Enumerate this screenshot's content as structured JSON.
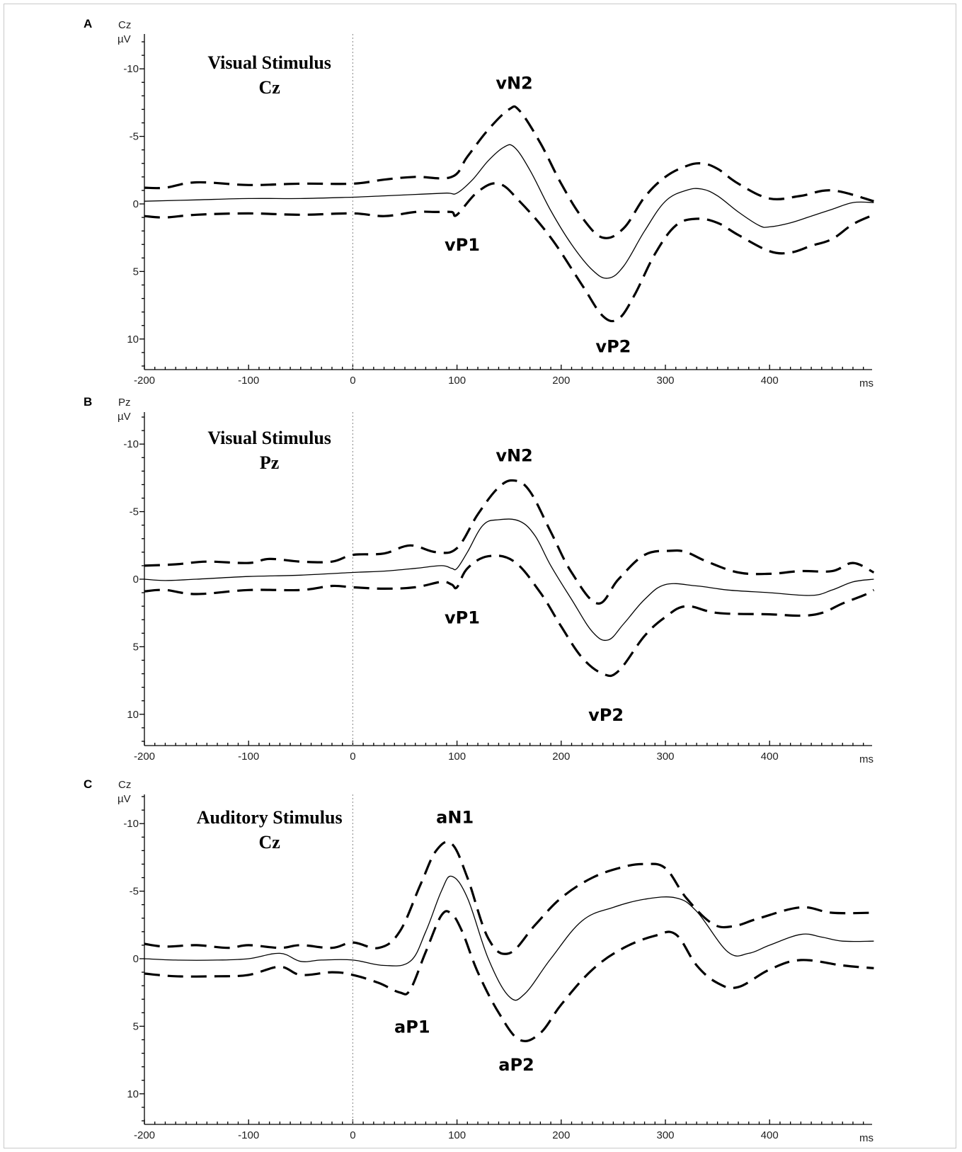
{
  "chart_data": [
    {
      "type": "line",
      "panel": "A",
      "channel": "Cz",
      "unit_y": "µV",
      "unit_x": "ms",
      "title": [
        "Visual Stimulus",
        "Cz"
      ],
      "xlim": [
        -200,
        500
      ],
      "ylim": [
        -12.5,
        12.5
      ],
      "y_inverted": true,
      "x_ticks": [
        -200,
        -100,
        0,
        100,
        200,
        300,
        400
      ],
      "y_ticks": [
        -10,
        -5,
        0,
        5,
        10
      ],
      "series": [
        {
          "style": "solid",
          "x": [
            -200,
            -150,
            -100,
            -50,
            0,
            30,
            60,
            90,
            100,
            115,
            130,
            145,
            155,
            170,
            190,
            210,
            230,
            245,
            260,
            280,
            300,
            320,
            335,
            350,
            370,
            390,
            400,
            420,
            440,
            460,
            480,
            500
          ],
          "y": [
            -0.2,
            -0.3,
            -0.4,
            -0.4,
            -0.5,
            -0.6,
            -0.7,
            -0.8,
            -0.8,
            -1.8,
            -3.2,
            -4.2,
            -4.2,
            -2.5,
            0.5,
            3.0,
            4.9,
            5.5,
            4.6,
            2.0,
            -0.2,
            -1.0,
            -1.1,
            -0.6,
            0.6,
            1.6,
            1.7,
            1.4,
            0.9,
            0.4,
            -0.1,
            -0.1
          ]
        },
        {
          "style": "dashed",
          "x": [
            -200,
            -180,
            -150,
            -100,
            -50,
            0,
            30,
            60,
            95,
            110,
            130,
            150,
            160,
            180,
            200,
            220,
            240,
            260,
            280,
            300,
            320,
            335,
            350,
            370,
            400,
            430,
            460,
            500
          ],
          "y": [
            -1.2,
            -1.2,
            -1.6,
            -1.4,
            -1.5,
            -1.5,
            -1.8,
            -2.0,
            -2.0,
            -3.5,
            -5.5,
            -7.0,
            -6.9,
            -4.5,
            -1.5,
            1.0,
            2.5,
            1.8,
            -0.5,
            -2.0,
            -2.8,
            -3.0,
            -2.6,
            -1.5,
            -0.4,
            -0.6,
            -1.0,
            -0.2
          ]
        },
        {
          "style": "dashed",
          "x": [
            -200,
            -180,
            -150,
            -100,
            -50,
            0,
            30,
            60,
            80,
            95,
            100,
            120,
            140,
            160,
            190,
            220,
            240,
            255,
            270,
            290,
            310,
            330,
            350,
            370,
            400,
            420,
            440,
            460,
            480,
            500
          ],
          "y": [
            0.9,
            1.0,
            0.8,
            0.7,
            0.8,
            0.7,
            0.9,
            0.6,
            0.6,
            0.6,
            0.8,
            -0.9,
            -1.5,
            -0.2,
            2.5,
            6.0,
            8.3,
            8.5,
            6.8,
            3.7,
            1.6,
            1.1,
            1.4,
            2.3,
            3.5,
            3.6,
            3.1,
            2.6,
            1.5,
            0.8
          ]
        }
      ],
      "annotations": [
        {
          "text": "vN2",
          "x": 155,
          "y": -9.0
        },
        {
          "text": "vP1",
          "x": 105,
          "y": 3.0
        },
        {
          "text": "vP2",
          "x": 250,
          "y": 10.5
        }
      ]
    },
    {
      "type": "line",
      "panel": "B",
      "channel": "Pz",
      "unit_y": "µV",
      "unit_x": "ms",
      "title": [
        "Visual Stimulus",
        "Pz"
      ],
      "xlim": [
        -200,
        500
      ],
      "ylim": [
        -12.5,
        12.5
      ],
      "y_inverted": true,
      "x_ticks": [
        -200,
        -100,
        0,
        100,
        200,
        300,
        400
      ],
      "y_ticks": [
        -10,
        -5,
        0,
        5,
        10
      ],
      "series": [
        {
          "style": "solid",
          "x": [
            -200,
            -180,
            -150,
            -100,
            -50,
            0,
            30,
            60,
            85,
            95,
            100,
            110,
            125,
            140,
            160,
            175,
            190,
            210,
            230,
            245,
            260,
            280,
            300,
            330,
            360,
            400,
            440,
            460,
            480,
            500
          ],
          "y": [
            0.0,
            0.1,
            0.0,
            -0.2,
            -0.3,
            -0.5,
            -0.6,
            -0.8,
            -1.0,
            -0.8,
            -0.8,
            -2.0,
            -4.0,
            -4.4,
            -4.3,
            -3.2,
            -1.0,
            1.5,
            3.9,
            4.5,
            3.3,
            1.5,
            0.4,
            0.5,
            0.8,
            1.0,
            1.2,
            0.8,
            0.2,
            0.0
          ]
        },
        {
          "style": "dashed",
          "x": [
            -200,
            -170,
            -140,
            -100,
            -80,
            -50,
            -20,
            0,
            30,
            55,
            80,
            100,
            120,
            140,
            155,
            170,
            190,
            210,
            235,
            255,
            280,
            305,
            320,
            340,
            370,
            400,
            430,
            460,
            480,
            500
          ],
          "y": [
            -1.0,
            -1.1,
            -1.3,
            -1.2,
            -1.5,
            -1.3,
            -1.3,
            -1.8,
            -1.9,
            -2.5,
            -2.0,
            -2.3,
            -4.8,
            -6.8,
            -7.3,
            -6.5,
            -3.5,
            -0.5,
            1.8,
            0.0,
            -1.8,
            -2.1,
            -2.0,
            -1.3,
            -0.5,
            -0.4,
            -0.6,
            -0.6,
            -1.2,
            -0.5
          ]
        },
        {
          "style": "dashed",
          "x": [
            -200,
            -180,
            -150,
            -100,
            -50,
            -20,
            0,
            30,
            60,
            85,
            95,
            100,
            110,
            130,
            155,
            180,
            200,
            220,
            240,
            255,
            280,
            300,
            320,
            350,
            400,
            430,
            450,
            470,
            490,
            500
          ],
          "y": [
            0.9,
            0.8,
            1.1,
            0.8,
            0.8,
            0.5,
            0.6,
            0.7,
            0.6,
            0.2,
            0.4,
            0.6,
            -0.8,
            -1.7,
            -1.3,
            1.0,
            3.5,
            5.8,
            7.0,
            6.8,
            4.2,
            2.8,
            2.0,
            2.5,
            2.6,
            2.7,
            2.5,
            1.8,
            1.2,
            0.8
          ]
        }
      ],
      "annotations": [
        {
          "text": "vN2",
          "x": 155,
          "y": -9.2
        },
        {
          "text": "vP1",
          "x": 105,
          "y": 2.8
        },
        {
          "text": "vP2",
          "x": 243,
          "y": 10.0
        }
      ]
    },
    {
      "type": "line",
      "panel": "C",
      "channel": "Cz",
      "unit_y": "µV",
      "unit_x": "ms",
      "title": [
        "Auditory Stimulus",
        "Cz"
      ],
      "xlim": [
        -200,
        500
      ],
      "ylim": [
        -12.5,
        12.5
      ],
      "y_inverted": true,
      "x_ticks": [
        -200,
        -100,
        0,
        100,
        200,
        300,
        400
      ],
      "y_ticks": [
        -10,
        -5,
        0,
        5,
        10
      ],
      "series": [
        {
          "style": "solid",
          "x": [
            -200,
            -170,
            -130,
            -100,
            -70,
            -50,
            -30,
            0,
            30,
            55,
            70,
            85,
            95,
            110,
            130,
            150,
            165,
            190,
            220,
            250,
            280,
            310,
            330,
            360,
            380,
            400,
            430,
            450,
            470,
            500
          ],
          "y": [
            0.0,
            0.1,
            0.1,
            0.0,
            -0.4,
            0.2,
            0.1,
            0.1,
            0.5,
            0.2,
            -2.0,
            -5.0,
            -6.1,
            -4.5,
            0.0,
            2.8,
            2.6,
            0.0,
            -2.8,
            -3.8,
            -4.4,
            -4.5,
            -3.5,
            -0.5,
            -0.4,
            -1.0,
            -1.8,
            -1.6,
            -1.3,
            -1.3
          ]
        },
        {
          "style": "dashed",
          "x": [
            -200,
            -180,
            -150,
            -120,
            -100,
            -70,
            -50,
            -20,
            0,
            25,
            45,
            65,
            80,
            95,
            110,
            130,
            150,
            175,
            200,
            230,
            260,
            280,
            300,
            320,
            345,
            365,
            390,
            430,
            460,
            500
          ],
          "y": [
            -1.1,
            -0.9,
            -1.0,
            -0.8,
            -1.0,
            -0.8,
            -1.0,
            -0.8,
            -1.2,
            -0.8,
            -2.0,
            -5.5,
            -8.0,
            -8.5,
            -6.0,
            -1.5,
            -0.4,
            -2.5,
            -4.5,
            -6.0,
            -6.8,
            -7.0,
            -6.7,
            -4.5,
            -2.6,
            -2.4,
            -3.0,
            -3.8,
            -3.4,
            -3.4
          ]
        },
        {
          "style": "dashed",
          "x": [
            -200,
            -170,
            -130,
            -100,
            -70,
            -50,
            -20,
            0,
            25,
            45,
            55,
            70,
            85,
            95,
            105,
            120,
            140,
            160,
            180,
            200,
            230,
            260,
            290,
            310,
            330,
            350,
            370,
            400,
            430,
            470,
            500
          ],
          "y": [
            1.1,
            1.3,
            1.3,
            1.2,
            0.6,
            1.2,
            1.0,
            1.2,
            1.8,
            2.5,
            2.3,
            -0.5,
            -3.2,
            -3.3,
            -2.0,
            1.0,
            4.0,
            6.0,
            5.5,
            3.4,
            0.8,
            -0.8,
            -1.7,
            -1.8,
            0.5,
            1.8,
            2.1,
            0.8,
            0.1,
            0.5,
            0.7
          ]
        }
      ],
      "annotations": [
        {
          "text": "aN1",
          "x": 98,
          "y": -10.5
        },
        {
          "text": "aP1",
          "x": 57,
          "y": 5.0
        },
        {
          "text": "aP2",
          "x": 157,
          "y": 7.8
        }
      ]
    }
  ]
}
